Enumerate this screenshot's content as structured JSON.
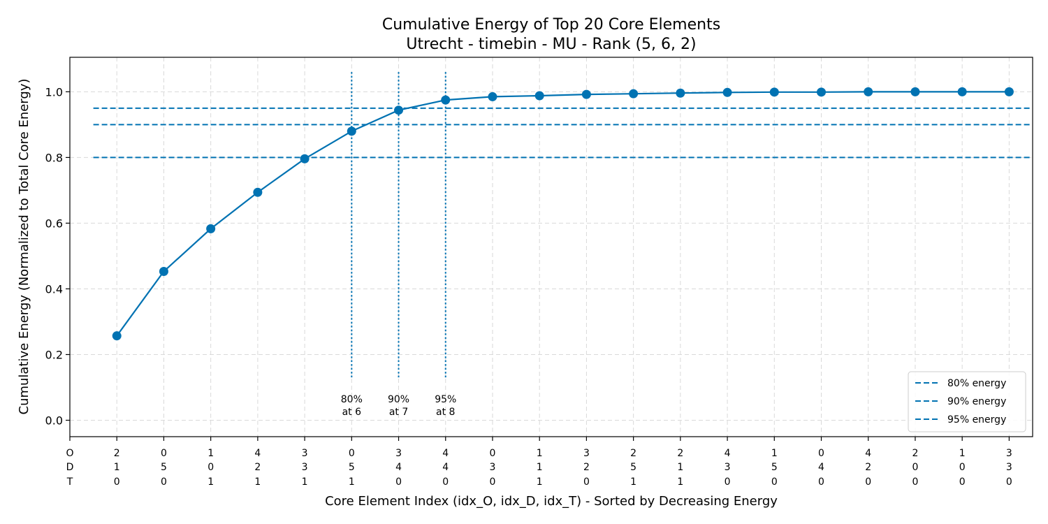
{
  "chart_data": {
    "type": "line",
    "title": "Cumulative Energy of Top 20 Core Elements",
    "subtitle": "Utrecht - timebin - MU - Rank (5, 6, 2)",
    "xlabel": "Core Element Index (idx_O, idx_D, idx_T) - Sorted by Decreasing Energy",
    "ylabel": "Cumulative Energy (Normalized to Total Core Energy)",
    "xlim": [
      0,
      20.5
    ],
    "ylim": [
      -0.05,
      1.105
    ],
    "yticks": [
      0.0,
      0.2,
      0.4,
      0.6,
      0.8,
      1.0
    ],
    "ytick_labels": [
      "0.0",
      "0.2",
      "0.4",
      "0.6",
      "0.8",
      "1.0"
    ],
    "axis_key_labels": [
      "O",
      "D",
      "T"
    ],
    "x": [
      1,
      2,
      3,
      4,
      5,
      6,
      7,
      8,
      9,
      10,
      11,
      12,
      13,
      14,
      15,
      16,
      17,
      18,
      19,
      20
    ],
    "xtick_labels": [
      [
        "2",
        "1",
        "0"
      ],
      [
        "0",
        "5",
        "0"
      ],
      [
        "1",
        "0",
        "1"
      ],
      [
        "4",
        "2",
        "1"
      ],
      [
        "3",
        "3",
        "1"
      ],
      [
        "0",
        "5",
        "1"
      ],
      [
        "3",
        "4",
        "0"
      ],
      [
        "4",
        "4",
        "0"
      ],
      [
        "0",
        "3",
        "0"
      ],
      [
        "1",
        "1",
        "1"
      ],
      [
        "3",
        "2",
        "0"
      ],
      [
        "2",
        "5",
        "1"
      ],
      [
        "2",
        "1",
        "1"
      ],
      [
        "4",
        "3",
        "0"
      ],
      [
        "1",
        "5",
        "0"
      ],
      [
        "0",
        "4",
        "0"
      ],
      [
        "4",
        "2",
        "0"
      ],
      [
        "2",
        "0",
        "0"
      ],
      [
        "1",
        "0",
        "0"
      ],
      [
        "3",
        "3",
        "0"
      ]
    ],
    "series": [
      {
        "values": [
          0.257,
          0.453,
          0.583,
          0.694,
          0.796,
          0.88,
          0.944,
          0.975,
          0.985,
          0.988,
          0.992,
          0.994,
          0.996,
          0.998,
          0.999,
          0.999,
          1.0,
          1.0,
          1.0,
          1.0
        ],
        "color": "#0072b2"
      }
    ],
    "thresholds": [
      {
        "value": 0.8,
        "legend": "80% energy",
        "label_line1": "80%",
        "label_line2": "at 6",
        "at": 6
      },
      {
        "value": 0.9,
        "legend": "90% energy",
        "label_line1": "90%",
        "label_line2": "at 7",
        "at": 7
      },
      {
        "value": 0.95,
        "legend": "95% energy",
        "label_line1": "95%",
        "label_line2": "at 8",
        "at": 8
      }
    ],
    "threshold_color": "#0072b2",
    "grid": true,
    "legend_position": "lower-right"
  }
}
